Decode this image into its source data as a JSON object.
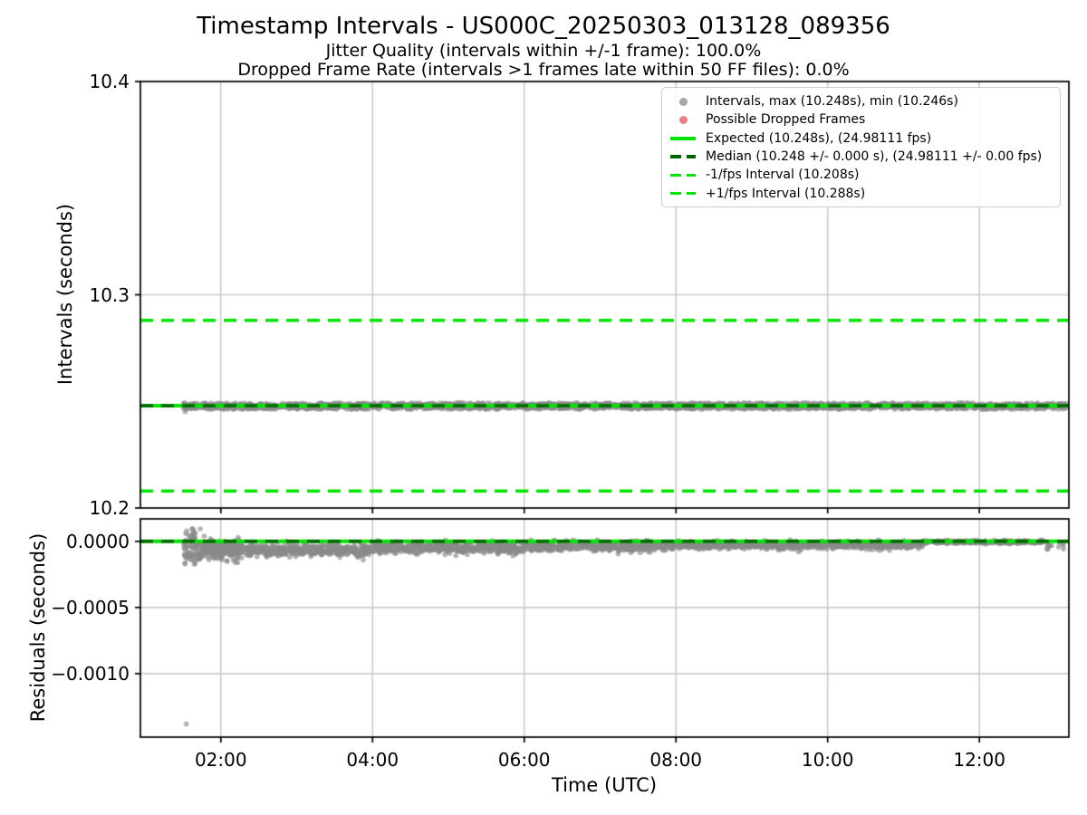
{
  "header": {
    "title": "Timestamp Intervals - US000C_20250303_013128_089356",
    "subtitle1": "Jitter Quality (intervals within +/-1 frame): 100.0%",
    "subtitle2": "Dropped Frame Rate (intervals >1 frames late within 50 FF files): 0.0%"
  },
  "colors": {
    "lime": "#00e400",
    "darkgreen": "#006400",
    "scatter_gray": "#8a8a8a",
    "dropped_red": "#f08080",
    "grid": "#cccccc",
    "axis": "#000000",
    "legend_border": "#cbcbcb"
  },
  "legend": {
    "position": "upper right",
    "items": [
      {
        "marker": "dot",
        "color": "#a6a6a6",
        "label": "Intervals, max (10.248s), min (10.246s)"
      },
      {
        "marker": "dot",
        "color": "#f08080",
        "label": "Possible Dropped Frames"
      },
      {
        "marker": "solid",
        "color": "#00e400",
        "label": "Expected (10.248s), (24.98111 fps)"
      },
      {
        "marker": "dashed",
        "color": "#006400",
        "label": "Median (10.248 +/- 0.000 s), (24.98111 +/- 0.00 fps)"
      },
      {
        "marker": "dashed",
        "color": "#00e400",
        "label": "-1/fps Interval (10.208s)"
      },
      {
        "marker": "dashed",
        "color": "#00e400",
        "label": "+1/fps Interval (10.288s)"
      }
    ]
  },
  "chart_data": [
    {
      "type": "scatter",
      "name": "intervals",
      "ylabel": "Intervals (seconds)",
      "ylim": [
        10.2,
        10.4
      ],
      "yticks": [
        {
          "value": 10.2,
          "label": "10.2"
        },
        {
          "value": 10.3,
          "label": "10.3"
        },
        {
          "value": 10.4,
          "label": "10.4"
        }
      ],
      "xlim_hours": [
        0.94,
        13.18
      ],
      "xticks": [
        {
          "hour": 2,
          "label": "02:00"
        },
        {
          "hour": 4,
          "label": "04:00"
        },
        {
          "hour": 6,
          "label": "06:00"
        },
        {
          "hour": 8,
          "label": "08:00"
        },
        {
          "hour": 10,
          "label": "10:00"
        },
        {
          "hour": 12,
          "label": "12:00"
        }
      ],
      "grid": true,
      "show_xtick_labels": false,
      "lines": [
        {
          "name": "expected",
          "y": 10.248,
          "color": "#00e400",
          "dash": null,
          "width": 4.0
        },
        {
          "name": "median",
          "y": 10.248,
          "color": "#006400",
          "dash": [
            14,
            9
          ],
          "width": 3.5
        },
        {
          "name": "minus-1fps",
          "y": 10.208,
          "color": "#00e400",
          "dash": [
            14,
            9
          ],
          "width": 3.5
        },
        {
          "name": "plus-1fps",
          "y": 10.288,
          "color": "#00e400",
          "dash": [
            14,
            9
          ],
          "width": 3.5
        }
      ],
      "scatter": {
        "color": "#8a8a8a",
        "alpha": 0.6,
        "radius": 3.0,
        "seed": 7,
        "segments": [
          {
            "t0": 1.51,
            "t1": 13.16,
            "n": 2900,
            "mean": 10.2478,
            "sd": 0.0007,
            "clip": [
              10.2464,
              10.2491
            ]
          }
        ],
        "outliers": [
          [
            1.53,
            10.2452
          ],
          [
            1.51,
            10.2468
          ],
          [
            1.55,
            10.2465
          ]
        ]
      },
      "stats": {
        "max_interval_s": 10.248,
        "min_interval_s": 10.246,
        "expected_s": 10.248,
        "expected_fps": 24.98111,
        "median_s": 10.248,
        "median_tol_s": 0.0,
        "median_fps": 24.98111,
        "median_tol_fps": 0.0,
        "minus_1fps_interval_s": 10.208,
        "plus_1fps_interval_s": 10.288,
        "jitter_quality_pct": 100.0,
        "dropped_frame_rate_pct": 0.0
      }
    },
    {
      "type": "scatter",
      "name": "residuals",
      "ylabel": "Residuals (seconds)",
      "xlabel": "Time (UTC)",
      "ylim": [
        -0.00148,
        0.00017
      ],
      "yticks": [
        {
          "value": 0,
          "label": "0.0000"
        },
        {
          "value": -0.0005,
          "label": "−0.0005"
        },
        {
          "value": -0.001,
          "label": "−0.0010"
        }
      ],
      "xlim_hours": [
        0.94,
        13.18
      ],
      "xticks": [
        {
          "hour": 2,
          "label": "02:00"
        },
        {
          "hour": 4,
          "label": "04:00"
        },
        {
          "hour": 6,
          "label": "06:00"
        },
        {
          "hour": 8,
          "label": "08:00"
        },
        {
          "hour": 10,
          "label": "10:00"
        },
        {
          "hour": 12,
          "label": "12:00"
        }
      ],
      "grid": true,
      "show_xtick_labels": true,
      "lines": [
        {
          "name": "expected-zero",
          "y": 0,
          "color": "#00e400",
          "dash": null,
          "width": 4.0
        },
        {
          "name": "median-zero",
          "y": 0,
          "color": "#006400",
          "dash": [
            14,
            9
          ],
          "width": 3.5
        }
      ],
      "scatter": {
        "color": "#8a8a8a",
        "alpha": 0.65,
        "radius": 2.8,
        "seed": 11,
        "segments": [
          {
            "t0": 1.505,
            "t1": 1.75,
            "n": 90,
            "mean": -4e-05,
            "sd": 7e-05,
            "clip": [
              -0.00017,
              9.5e-05
            ]
          },
          {
            "t0": 1.75,
            "t1": 2.3,
            "n": 280,
            "mean": -6e-05,
            "sd": 3.5e-05,
            "clip": [
              -0.00016,
              4e-05
            ]
          },
          {
            "t0": 2.3,
            "t1": 4.0,
            "n": 430,
            "mean": -6.5e-05,
            "sd": 2.2e-05,
            "clip": [
              -0.00014,
              1e-05
            ]
          },
          {
            "t0": 4.0,
            "t1": 6.0,
            "n": 520,
            "mean": -5e-05,
            "sd": 2e-05,
            "clip": [
              -0.00012,
              1e-05
            ]
          },
          {
            "t0": 6.0,
            "t1": 8.0,
            "n": 520,
            "mean": -3.8e-05,
            "sd": 1.8e-05,
            "clip": [
              -0.0001,
              1e-05
            ]
          },
          {
            "t0": 8.0,
            "t1": 11.25,
            "n": 820,
            "mean": -2.8e-05,
            "sd": 1.4e-05,
            "clip": [
              -8e-05,
              1e-05
            ]
          },
          {
            "t0": 11.25,
            "t1": 12.85,
            "n": 300,
            "mean": -4e-06,
            "sd": 6e-06,
            "clip": [
              -2e-05,
              1e-05
            ]
          },
          {
            "t0": 12.85,
            "t1": 13.13,
            "n": 14,
            "mean": -2e-05,
            "sd": 2.5e-05,
            "clip": [
              -6e-05,
              4e-05
            ]
          }
        ],
        "outliers": [
          [
            1.545,
            -0.00138
          ],
          [
            1.53,
            -0.000164
          ],
          [
            1.56,
            -0.00013
          ],
          [
            1.58,
            -0.000115
          ]
        ]
      }
    }
  ]
}
